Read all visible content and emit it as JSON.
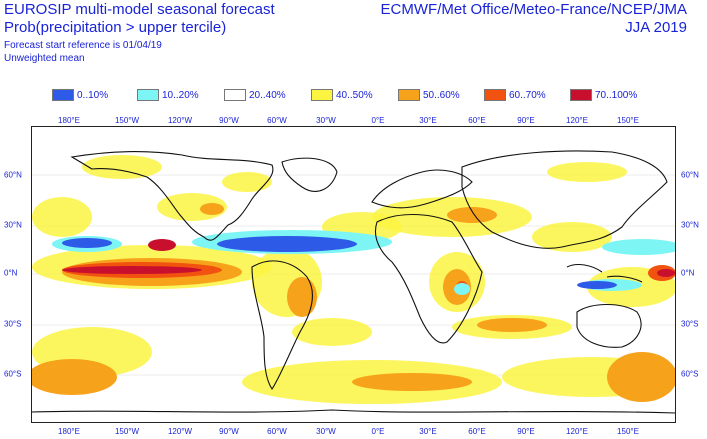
{
  "header": {
    "title_line1": "EUROSIP multi-model seasonal forecast",
    "title_line2": "Prob(precipitation > upper tercile)",
    "forecast_ref": "Forecast start reference is 01/04/19",
    "weighting": "Unweighted mean",
    "sources": "ECMWF/Met Office/Meteo-France/NCEP/JMA",
    "season": "JJA 2019"
  },
  "legend": [
    {
      "label": "0..10%",
      "color": "#2d5be8"
    },
    {
      "label": "10..20%",
      "color": "#7ef5f5"
    },
    {
      "label": "20..40%",
      "color": "#ffffff"
    },
    {
      "label": "40..50%",
      "color": "#fbf542"
    },
    {
      "label": "50..60%",
      "color": "#f7a21b"
    },
    {
      "label": "60..70%",
      "color": "#f2520f"
    },
    {
      "label": "70..100%",
      "color": "#c8102e"
    }
  ],
  "lon_ticks": [
    "180°E",
    "150°W",
    "120°W",
    "90°W",
    "60°W",
    "30°W",
    "0°E",
    "30°E",
    "60°E",
    "90°E",
    "120°E",
    "150°E"
  ],
  "lat_ticks_left": [
    "60°N",
    "30°N",
    "0°N",
    "30°S",
    "60°S"
  ],
  "lat_ticks_right": [
    "60°N",
    "30°N",
    "0°N",
    "30°S",
    "60°S"
  ]
}
